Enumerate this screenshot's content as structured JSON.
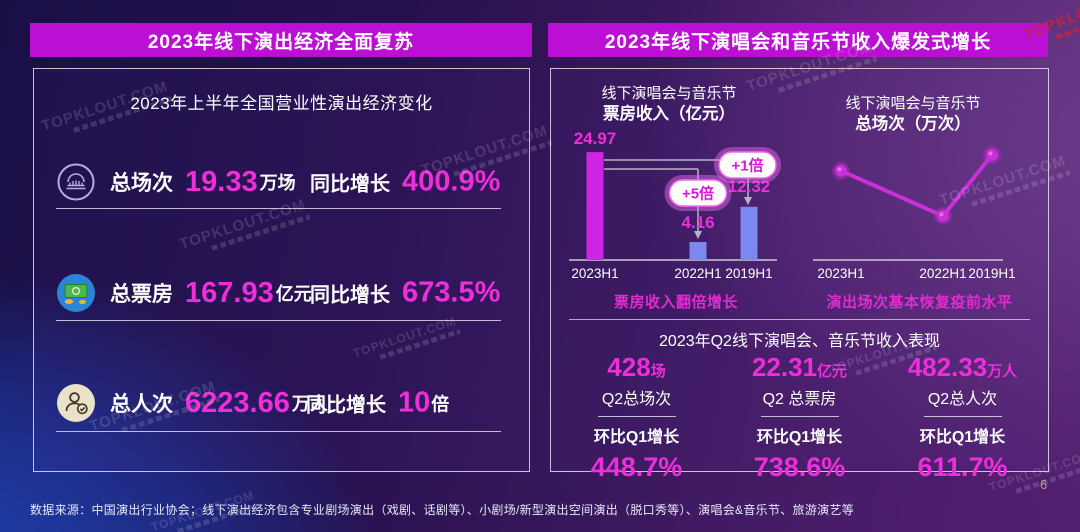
{
  "page": {
    "number": "6",
    "footer": "数据来源：中国演出行业协会；线下演出经济包含专业剧场演出（戏剧、话剧等）、小剧场/新型演出空间演出（脱口秀等）、演唱会&音乐节、旅游演艺等",
    "watermark": "TOPKLOUT.COM"
  },
  "colors": {
    "accent_text": "#ee2ed8",
    "header_bg": "#bb10d4",
    "bar_magenta": "#cf24e3",
    "bar_blue": "#7c88f0",
    "line_magenta": "#cb2fd8"
  },
  "left_panel": {
    "header": "2023年线下演出经济全面复苏",
    "subtitle": "2023年上半年全国营业性演出经济变化",
    "rows": [
      {
        "icon": "theater-building-icon",
        "label": "总场次",
        "value": "19.33",
        "unit": "万场",
        "yoy_label": "同比增长",
        "yoy_value": "400.9%",
        "yoy_unit": ""
      },
      {
        "icon": "money-banknote-icon",
        "label": "总票房",
        "value": "167.93",
        "unit": "亿元",
        "yoy_label": "同比增长",
        "yoy_value": "673.5%",
        "yoy_unit": ""
      },
      {
        "icon": "person-check-icon",
        "label": "总人次",
        "value": "6223.66",
        "unit": "万人",
        "yoy_label": "同比增长",
        "yoy_value": "10",
        "yoy_unit": "倍"
      }
    ]
  },
  "right_panel": {
    "header": "2023年线下演唱会和音乐节收入爆发式增长",
    "q2": {
      "title": "2023年Q2线下演唱会、音乐节收入表现",
      "stats": [
        {
          "value": "428",
          "unit": "场",
          "label": "Q2总场次",
          "compare_label": "环比Q1增长",
          "compare_value": "448.7%"
        },
        {
          "value": "22.31",
          "unit": "亿元",
          "label": "Q2 总票房",
          "compare_label": "环比Q1增长",
          "compare_value": "738.6%"
        },
        {
          "value": "482.33",
          "unit": "万人",
          "label": "Q2总人次",
          "compare_label": "环比Q1增长",
          "compare_value": "611.7%"
        }
      ]
    }
  },
  "chart_data": [
    {
      "type": "bar",
      "title_line1": "线下演唱会与音乐节",
      "title_line2": "票房收入（亿元）",
      "categories": [
        "2023H1",
        "2022H1",
        "2019H1"
      ],
      "values": [
        24.97,
        4.16,
        12.32
      ],
      "value_labels": [
        "24.97",
        "4.16",
        "12.32"
      ],
      "bar_colors": [
        "#cf24e3",
        "#7c88f0",
        "#7c88f0"
      ],
      "annotations": [
        {
          "label": "+5倍",
          "from_category": "2023H1",
          "to_category": "2022H1"
        },
        {
          "label": "+1倍",
          "from_category": "2023H1",
          "to_category": "2019H1"
        }
      ],
      "caption": "票房收入翻倍增长",
      "ylim": [
        0,
        25
      ],
      "grid": false,
      "legend": false
    },
    {
      "type": "line",
      "title_line1": "线下演唱会与音乐节",
      "title_line2": "总场次（万次）",
      "categories": [
        "2023H1",
        "2022H1",
        "2019H1"
      ],
      "values_relative_index": [
        85,
        42,
        100
      ],
      "note": "点未标注数值，按像素高度估算的相对水平（2019H1=100）",
      "caption": "演出场次基本恢复疫前水平",
      "grid": false,
      "legend": false
    }
  ]
}
